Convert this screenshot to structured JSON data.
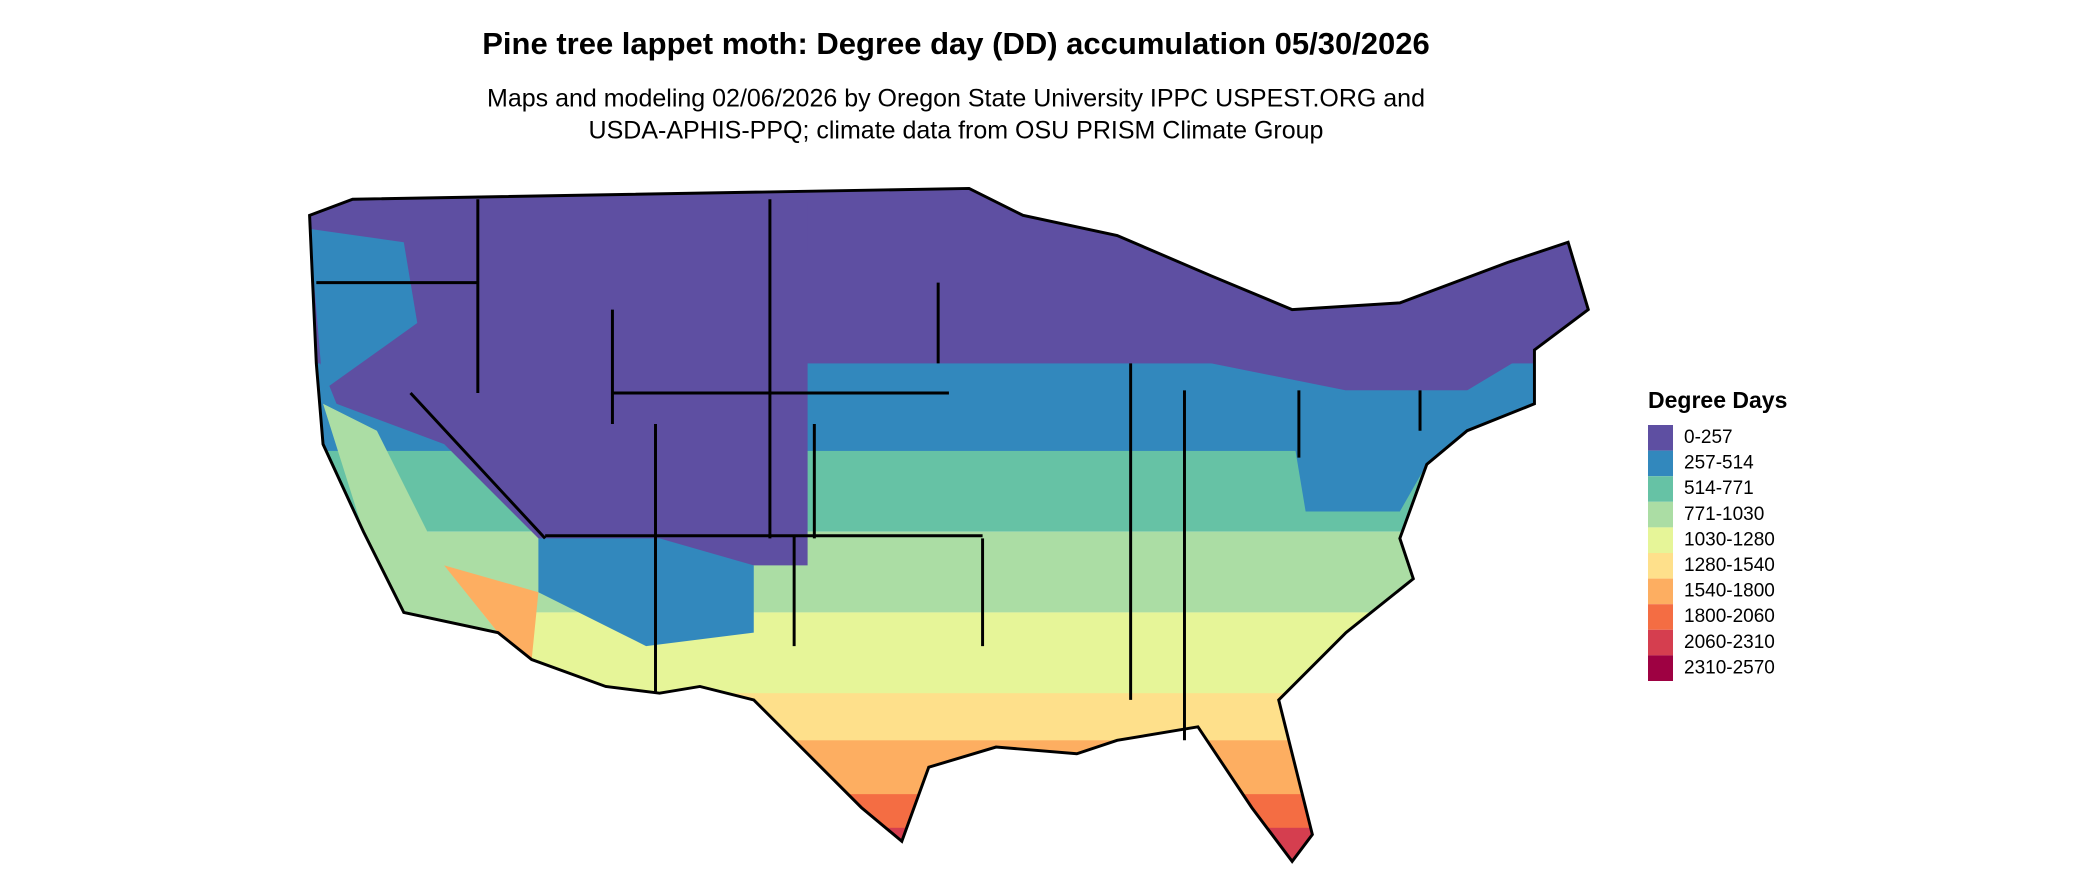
{
  "title": "Pine tree lappet moth: Degree day (DD) accumulation 05/30/2026",
  "subtitle": [
    "Maps and modeling 02/06/2026 by Oregon State University IPPC USPEST.ORG and",
    "USDA-APHIS-PPQ; climate data from OSU PRISM Climate Group"
  ],
  "legend": {
    "title": "Degree Days",
    "items": [
      {
        "label": "0-257",
        "color": "#5e4fa2"
      },
      {
        "label": "257-514",
        "color": "#3288bd"
      },
      {
        "label": "514-771",
        "color": "#66c2a5"
      },
      {
        "label": "771-1030",
        "color": "#abdda4"
      },
      {
        "label": "1030-1280",
        "color": "#e6f598"
      },
      {
        "label": "1280-1540",
        "color": "#fee08b"
      },
      {
        "label": "1540-1800",
        "color": "#fdae61"
      },
      {
        "label": "1800-2060",
        "color": "#f46d43"
      },
      {
        "label": "2060-2310",
        "color": "#d53e4f"
      },
      {
        "label": "2310-2570",
        "color": "#9e0142"
      }
    ]
  }
}
